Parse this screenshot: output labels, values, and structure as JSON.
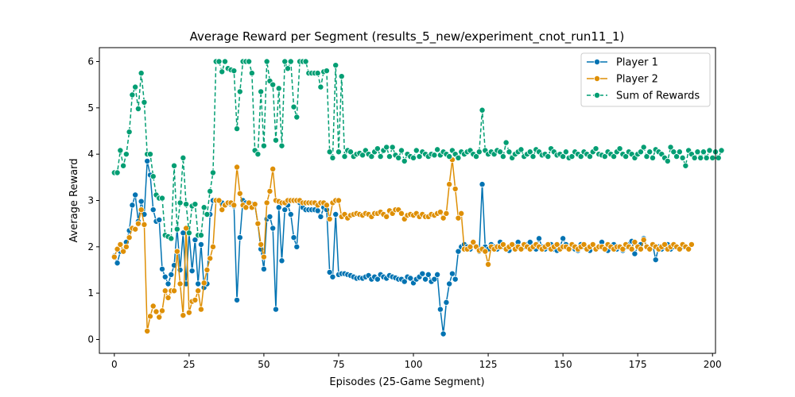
{
  "chart_data": {
    "type": "line",
    "title": "Average Reward per Segment (results_5_new/experiment_cnot_run11_1)",
    "xlabel": "Episodes (25-Game Segment)",
    "ylabel": "Average Reward",
    "xlim": [
      -5,
      201
    ],
    "ylim": [
      -0.3,
      6.3
    ],
    "xticks": [
      0,
      25,
      50,
      75,
      100,
      125,
      150,
      175,
      200
    ],
    "yticks": [
      0,
      1,
      2,
      3,
      4,
      5,
      6
    ],
    "legend_position": "top-right",
    "grid": false,
    "series": [
      {
        "name": "Player 1",
        "color": "#0173b2",
        "marker": "circle",
        "line_style": "solid",
        "values": [
          1.8,
          1.65,
          1.9,
          1.92,
          2.1,
          2.35,
          2.9,
          3.12,
          2.55,
          2.98,
          2.7,
          3.85,
          3.55,
          2.8,
          2.55,
          2.58,
          1.52,
          1.35,
          1.2,
          1.4,
          1.6,
          2.4,
          1.5,
          2.3,
          1.2,
          2.3,
          1.48,
          2.15,
          1.2,
          2.05,
          1.12,
          1.2,
          2.7,
          3.0,
          3.0,
          3.0,
          2.95,
          2.9,
          2.95,
          2.92,
          2.88,
          0.85,
          2.2,
          3.0,
          2.95,
          2.95,
          2.92,
          2.9,
          2.5,
          1.95,
          1.52,
          2.6,
          2.65,
          2.4,
          0.65,
          2.85,
          1.7,
          2.8,
          2.9,
          2.7,
          2.2,
          2.0,
          2.95,
          2.85,
          2.8,
          2.8,
          2.8,
          2.8,
          2.78,
          2.65,
          2.85,
          2.8,
          1.45,
          1.35,
          2.7,
          1.4,
          1.42,
          1.42,
          1.4,
          1.38,
          1.35,
          1.32,
          1.33,
          1.32,
          1.35,
          1.38,
          1.3,
          1.35,
          1.3,
          1.4,
          1.35,
          1.32,
          1.38,
          1.35,
          1.33,
          1.3,
          1.3,
          1.25,
          1.35,
          1.32,
          1.22,
          1.3,
          1.35,
          1.42,
          1.3,
          1.4,
          1.25,
          1.3,
          1.4,
          0.65,
          0.12,
          0.8,
          1.2,
          1.42,
          1.3,
          1.9,
          2.0,
          2.05,
          2.0,
          1.95,
          2.05,
          2.0,
          1.9,
          3.35,
          2.0,
          1.95,
          2.05,
          2.0,
          1.95,
          2.1,
          2.0,
          1.95,
          1.92,
          2.05,
          2.0,
          2.1,
          1.95,
          2.0,
          2.05,
          2.1,
          2.0,
          1.95,
          2.18,
          2.0,
          1.95,
          2.0,
          2.05,
          1.95,
          1.92,
          2.0,
          2.18,
          2.05,
          1.95,
          2.0,
          1.95,
          1.92,
          2.05,
          2.0,
          1.98,
          1.92,
          2.05,
          1.95,
          2.0,
          2.1,
          1.95,
          1.92,
          2.0,
          2.05,
          1.95,
          2.0,
          1.92,
          2.0,
          2.05,
          2.12,
          1.85,
          2.0,
          2.05,
          2.18,
          2.0,
          1.98,
          2.05,
          1.72,
          2.0,
          1.95,
          2.0,
          2.05,
          1.95,
          2.0,
          2.0,
          1.95,
          2.0
        ]
      },
      {
        "name": "Player 2",
        "color": "#de8f05",
        "marker": "circle",
        "line_style": "solid",
        "values": [
          1.78,
          1.95,
          2.05,
          1.9,
          2.0,
          2.2,
          2.4,
          2.38,
          2.5,
          2.8,
          2.48,
          0.18,
          0.5,
          0.72,
          0.6,
          0.48,
          0.62,
          1.05,
          0.9,
          1.05,
          1.05,
          1.9,
          1.2,
          0.52,
          2.4,
          0.58,
          0.82,
          0.85,
          1.05,
          0.65,
          1.22,
          1.5,
          1.75,
          2.0,
          3.0,
          3.0,
          2.8,
          2.9,
          2.95,
          2.95,
          2.9,
          3.72,
          3.15,
          2.9,
          2.85,
          2.95,
          2.85,
          2.92,
          2.5,
          2.05,
          1.78,
          2.95,
          3.2,
          3.68,
          3.0,
          2.98,
          2.95,
          2.95,
          3.0,
          3.0,
          3.0,
          3.0,
          3.0,
          2.95,
          2.95,
          2.95,
          2.95,
          2.95,
          2.9,
          2.95,
          2.95,
          2.9,
          2.6,
          2.95,
          3.0,
          3.0,
          2.65,
          2.7,
          2.62,
          2.68,
          2.7,
          2.72,
          2.7,
          2.68,
          2.72,
          2.7,
          2.65,
          2.72,
          2.72,
          2.75,
          2.7,
          2.65,
          2.78,
          2.72,
          2.8,
          2.8,
          2.72,
          2.6,
          2.68,
          2.7,
          2.68,
          2.72,
          2.65,
          2.7,
          2.65,
          2.65,
          2.7,
          2.68,
          2.72,
          2.75,
          2.62,
          2.72,
          3.35,
          3.88,
          3.25,
          2.62,
          2.72,
          1.95,
          1.95,
          2.0,
          2.1,
          2.0,
          1.92,
          1.95,
          1.9,
          1.62,
          2.0,
          1.95,
          2.0,
          2.0,
          2.05,
          1.95,
          2.0,
          2.05,
          1.95,
          2.0,
          1.95,
          2.05,
          2.0,
          1.95,
          2.0,
          2.05,
          2.0,
          1.95,
          2.0,
          2.05,
          1.95,
          2.0,
          2.05,
          1.95,
          2.0,
          2.0,
          1.95,
          2.05,
          2.0,
          1.95,
          2.0,
          2.05,
          1.95,
          2.0,
          2.05,
          1.95,
          2.0,
          2.0,
          1.95,
          2.05,
          2.0,
          1.95,
          2.0,
          2.0,
          1.95,
          2.05,
          2.0,
          1.95,
          2.1,
          2.0,
          1.95,
          2.15,
          2.0,
          1.95,
          2.05,
          2.0,
          1.95,
          2.0,
          2.05,
          1.95,
          2.0,
          2.05,
          2.0,
          1.95,
          2.05,
          2.0,
          1.95,
          2.05
        ]
      },
      {
        "name": "Sum of Rewards",
        "color": "#029e73",
        "marker": "circle",
        "line_style": "dashed",
        "values": [
          3.6,
          3.6,
          4.08,
          3.75,
          4.0,
          4.48,
          5.28,
          5.45,
          4.98,
          5.75,
          5.12,
          4.0,
          4.0,
          3.52,
          3.12,
          3.05,
          3.05,
          2.25,
          2.22,
          2.18,
          3.75,
          2.38,
          2.95,
          3.92,
          2.92,
          2.3,
          2.88,
          2.92,
          2.25,
          2.25,
          2.85,
          2.7,
          3.2,
          3.6,
          6.0,
          6.0,
          5.78,
          6.0,
          5.85,
          5.82,
          5.8,
          4.55,
          5.35,
          6.0,
          6.0,
          6.0,
          5.75,
          4.08,
          4.0,
          5.35,
          4.18,
          6.0,
          5.58,
          5.5,
          4.3,
          5.42,
          4.18,
          6.0,
          5.85,
          6.0,
          5.02,
          4.8,
          6.0,
          6.0,
          6.0,
          5.75,
          5.75,
          5.75,
          5.75,
          5.45,
          5.78,
          5.8,
          4.05,
          3.92,
          5.92,
          4.05,
          5.68,
          3.95,
          4.08,
          4.05,
          3.95,
          4.0,
          4.02,
          3.98,
          4.08,
          4.0,
          3.95,
          4.05,
          4.12,
          3.95,
          4.08,
          4.15,
          3.95,
          4.15,
          3.98,
          3.92,
          4.08,
          3.85,
          4.0,
          3.95,
          3.92,
          4.08,
          3.95,
          4.05,
          4.0,
          3.95,
          4.0,
          3.98,
          4.1,
          3.98,
          4.05,
          4.0,
          3.95,
          4.08,
          4.0,
          3.92,
          4.05,
          4.0,
          4.05,
          4.08,
          4.0,
          3.95,
          4.05,
          4.95,
          4.08,
          4.0,
          4.05,
          4.0,
          4.08,
          4.05,
          3.95,
          4.25,
          4.05,
          3.92,
          4.0,
          4.05,
          4.1,
          3.95,
          4.0,
          4.05,
          3.95,
          4.1,
          4.05,
          3.98,
          4.0,
          3.95,
          4.12,
          4.05,
          3.98,
          4.0,
          3.95,
          4.05,
          3.92,
          3.95,
          4.05,
          4.0,
          3.95,
          4.05,
          4.0,
          3.95,
          4.05,
          4.12,
          4.0,
          3.98,
          3.95,
          4.05,
          4.0,
          3.95,
          4.05,
          4.12,
          4.0,
          3.95,
          4.05,
          4.0,
          3.92,
          4.0,
          4.05,
          4.15,
          3.95,
          4.05,
          3.92,
          4.1,
          4.05,
          4.0,
          3.92,
          3.85,
          4.15,
          4.05,
          3.95,
          4.05,
          3.92,
          3.75,
          4.08,
          4.0,
          3.92,
          4.05,
          3.92,
          4.05,
          3.92,
          4.08,
          3.92,
          4.05,
          3.92,
          4.08
        ]
      }
    ]
  }
}
